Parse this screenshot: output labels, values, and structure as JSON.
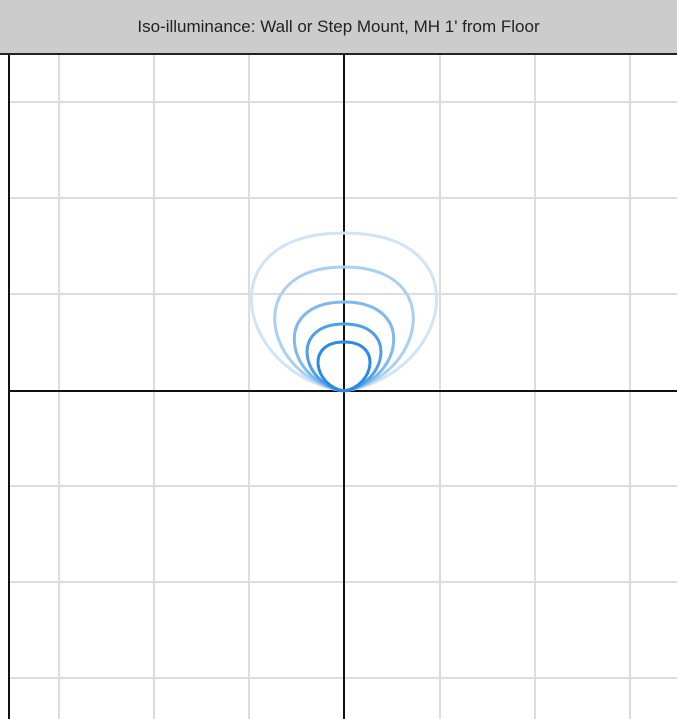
{
  "header": {
    "title": "Iso-illuminance: Wall or Step Mount, MH 1' from Floor"
  }
}
